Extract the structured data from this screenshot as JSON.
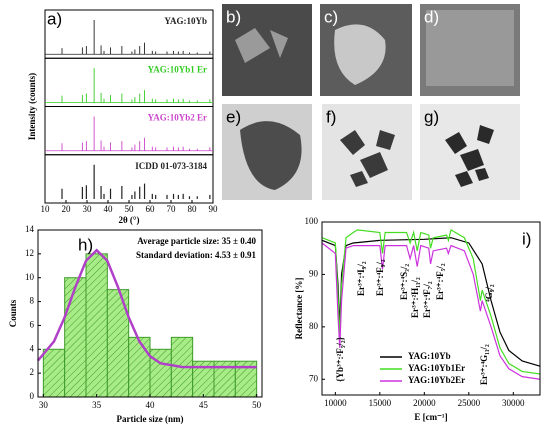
{
  "image_labels": [
    "b)",
    "c)",
    "d)",
    "e)",
    "f)",
    "g)"
  ],
  "chart_data": [
    {
      "type": "stick",
      "panel_label": "a)",
      "xlabel": "2θ (°)",
      "ylabel": "Intensity (counts)",
      "xlim": [
        10,
        90
      ],
      "xticks": [
        10,
        20,
        30,
        40,
        50,
        60,
        70,
        80,
        90
      ],
      "x": [
        18.1,
        27.8,
        29.7,
        33.4,
        36.7,
        38.1,
        41.2,
        46.6,
        51.4,
        52.8,
        55.1,
        57.4,
        61.1,
        62.7,
        68.1,
        71.2,
        73.5,
        75.8,
        78.8,
        82.5,
        88.5
      ],
      "series": [
        {
          "name": "YAG:10Yb",
          "color": "#222222",
          "values": [
            18,
            20,
            24,
            100,
            26,
            10,
            20,
            24,
            8,
            14,
            24,
            34,
            10,
            8,
            8,
            10,
            8,
            10,
            5,
            5,
            8
          ]
        },
        {
          "name": "YAG:10Yb1 Er",
          "color": "#33cc22",
          "values": [
            20,
            22,
            26,
            100,
            28,
            11,
            22,
            26,
            9,
            16,
            26,
            36,
            11,
            9,
            9,
            11,
            9,
            11,
            6,
            6,
            9
          ]
        },
        {
          "name": "YAG:10Yb2 Er",
          "color": "#cc44cc",
          "values": [
            22,
            24,
            28,
            100,
            30,
            12,
            24,
            28,
            10,
            18,
            28,
            38,
            12,
            10,
            10,
            12,
            10,
            12,
            6,
            6,
            10
          ]
        },
        {
          "name": "ICDD 01-073-3184",
          "color": "#222222",
          "values": [
            30,
            35,
            40,
            100,
            38,
            15,
            30,
            38,
            12,
            22,
            36,
            45,
            15,
            12,
            12,
            15,
            12,
            15,
            8,
            8,
            12
          ]
        }
      ]
    },
    {
      "type": "histogram",
      "panel_label": "h)",
      "xlabel": "Particle size (nm)",
      "ylabel": "Counts",
      "bins": [
        30,
        32,
        34,
        36,
        38,
        40,
        42,
        44,
        46,
        48,
        50
      ],
      "counts": [
        4,
        10,
        12,
        9,
        5,
        4,
        5,
        3,
        3,
        3
      ],
      "color": "#a8ec88",
      "edgecolor": "#3f9a2a",
      "hatch": true,
      "fit": {
        "color": "#b040c8",
        "x": [
          29.5,
          31,
          32,
          33,
          34,
          35,
          36,
          37,
          38,
          39,
          40,
          41,
          43,
          46,
          50
        ],
        "values": [
          3.06,
          4.66,
          6.69,
          9.21,
          11.42,
          12.3,
          11.42,
          9.21,
          6.69,
          4.66,
          3.42,
          2.82,
          2.52,
          2.5,
          2.5
        ]
      },
      "annotations": [
        "Average particle size: 35 ± 0.40",
        "Standard deviation: 4.53 ± 0.91"
      ],
      "xlim": [
        29.5,
        50.5
      ],
      "xticks": [
        30,
        35,
        40,
        45,
        50
      ],
      "ylim": [
        0,
        14
      ],
      "yticks": [
        0,
        2,
        4,
        6,
        8,
        10,
        12,
        14
      ]
    },
    {
      "type": "line",
      "panel_label": "i)",
      "xlabel": "E [cm⁻¹]",
      "ylabel": "Reflectance [%]",
      "xlim": [
        8500,
        33000
      ],
      "xticks": [
        10000,
        15000,
        20000,
        25000,
        30000
      ],
      "ylim": [
        67,
        100
      ],
      "yticks": [
        70,
        80,
        90,
        100
      ],
      "legend": "lower right",
      "series": [
        {
          "name": "YAG:10Yb",
          "color": "#000000",
          "x": [
            8500,
            10000,
            10300,
            10500,
            10700,
            11200,
            12000,
            15000,
            20000,
            23000,
            25000,
            26500,
            27500,
            28500,
            29500,
            31000,
            33000
          ],
          "values": [
            96.5,
            95.5,
            88,
            80,
            90,
            95.5,
            96,
            96.5,
            96.7,
            97,
            96,
            92,
            85,
            79,
            75.5,
            73.5,
            72.5
          ]
        },
        {
          "name": "YAG:10Yb1Er",
          "color": "#44dd22",
          "x": [
            8500,
            10000,
            10300,
            10500,
            10700,
            11200,
            12000,
            12500,
            15000,
            15300,
            15600,
            18000,
            18400,
            18800,
            19200,
            19600,
            20500,
            20700,
            21000,
            22500,
            22700,
            23000,
            24500,
            25500,
            26300,
            26500,
            27500,
            28500,
            29500,
            31000,
            33000
          ],
          "values": [
            97,
            96,
            86,
            78,
            88,
            97,
            98,
            98.5,
            98,
            94,
            98,
            98,
            96,
            98,
            94.5,
            98,
            97.5,
            95,
            97,
            97.5,
            96.5,
            98.5,
            97,
            93,
            85,
            87,
            82,
            76,
            73,
            71.5,
            71
          ]
        },
        {
          "name": "YAG:10Yb2Er",
          "color": "#cc33dd",
          "x": [
            8500,
            10000,
            10300,
            10500,
            10700,
            11200,
            12000,
            15000,
            15300,
            15600,
            18000,
            18400,
            18800,
            19200,
            19600,
            20500,
            20700,
            21000,
            22500,
            22700,
            23000,
            24500,
            25500,
            26300,
            26500,
            27500,
            28500,
            29500,
            31000,
            33000
          ],
          "values": [
            96,
            94,
            82,
            76,
            85,
            95,
            95.5,
            95.5,
            91,
            95.5,
            95.5,
            93,
            95.5,
            91.5,
            95.5,
            95,
            92,
            94.5,
            95,
            94,
            95.5,
            94.5,
            90,
            83,
            85,
            80,
            74.5,
            72,
            70.5,
            70
          ]
        }
      ],
      "annotations": [
        "{Yb³⁺:²F₅/₂}",
        "Er³⁺:⁴I₉/₂",
        "Er³⁺:⁴F₉/₂",
        "Er³⁺:⁴S₃/₂",
        "Er³⁺:²H₁₁/₂",
        "Er³⁺:⁴F₇/₂",
        "Er³⁺:⁴F₅/₂",
        "Er³⁺:⁴G₁₁/₂",
        "⁴G₉/₂"
      ]
    }
  ]
}
